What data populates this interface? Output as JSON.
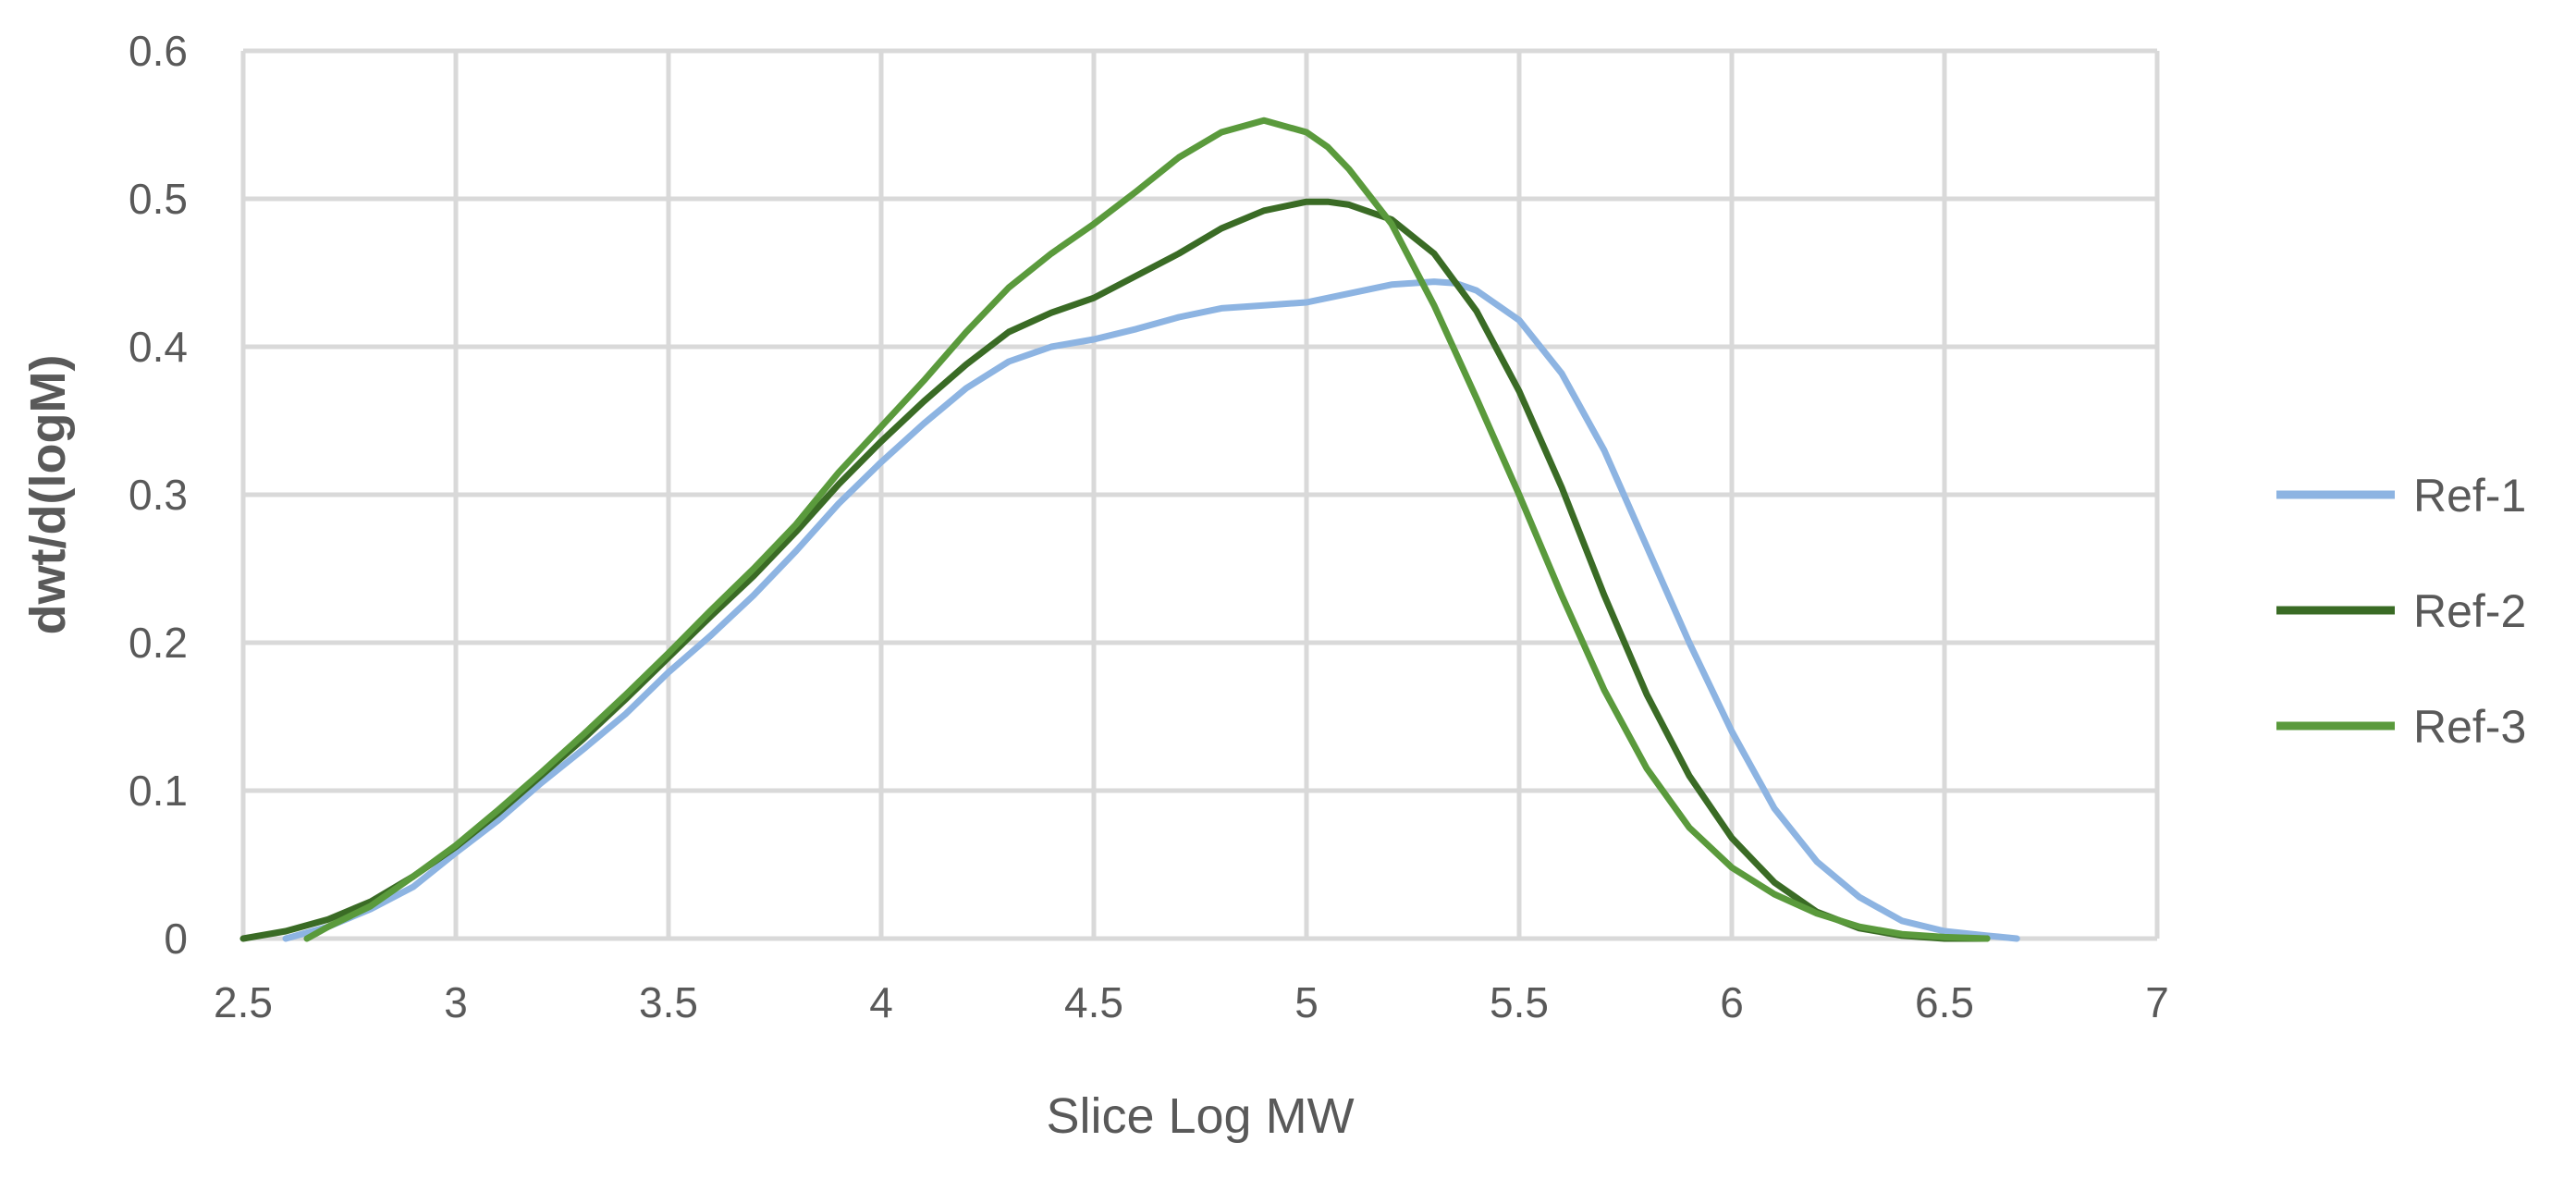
{
  "chart_data": {
    "type": "line",
    "title": "",
    "xlabel": "Slice Log MW",
    "ylabel": "dwt/d(logM)",
    "xlim": [
      2.5,
      7
    ],
    "ylim": [
      0,
      0.6
    ],
    "grid": true,
    "legend_position": "right",
    "x_ticks": [
      "2.5",
      "3",
      "3.5",
      "4",
      "4.5",
      "5",
      "5.5",
      "6",
      "6.5",
      "7"
    ],
    "y_ticks": [
      "0",
      "0.1",
      "0.2",
      "0.3",
      "0.4",
      "0.5",
      "0.6"
    ],
    "series": [
      {
        "name": "Ref-1",
        "color": "#8db4e2",
        "points": [
          [
            2.6,
            0
          ],
          [
            2.7,
            0.008
          ],
          [
            2.8,
            0.02
          ],
          [
            2.9,
            0.035
          ],
          [
            3.0,
            0.058
          ],
          [
            3.1,
            0.08
          ],
          [
            3.2,
            0.105
          ],
          [
            3.3,
            0.128
          ],
          [
            3.4,
            0.152
          ],
          [
            3.5,
            0.18
          ],
          [
            3.6,
            0.205
          ],
          [
            3.7,
            0.232
          ],
          [
            3.8,
            0.262
          ],
          [
            3.9,
            0.294
          ],
          [
            4.0,
            0.322
          ],
          [
            4.1,
            0.348
          ],
          [
            4.2,
            0.372
          ],
          [
            4.3,
            0.39
          ],
          [
            4.4,
            0.4
          ],
          [
            4.5,
            0.405
          ],
          [
            4.6,
            0.412
          ],
          [
            4.7,
            0.42
          ],
          [
            4.8,
            0.426
          ],
          [
            4.9,
            0.428
          ],
          [
            5.0,
            0.43
          ],
          [
            5.1,
            0.436
          ],
          [
            5.2,
            0.442
          ],
          [
            5.3,
            0.444
          ],
          [
            5.35,
            0.443
          ],
          [
            5.4,
            0.438
          ],
          [
            5.5,
            0.418
          ],
          [
            5.6,
            0.382
          ],
          [
            5.7,
            0.33
          ],
          [
            5.8,
            0.265
          ],
          [
            5.9,
            0.2
          ],
          [
            6.0,
            0.14
          ],
          [
            6.1,
            0.088
          ],
          [
            6.2,
            0.052
          ],
          [
            6.3,
            0.028
          ],
          [
            6.4,
            0.012
          ],
          [
            6.5,
            0.005
          ],
          [
            6.6,
            0.002
          ],
          [
            6.67,
            0
          ]
        ]
      },
      {
        "name": "Ref-2",
        "color": "#3a6b25",
        "points": [
          [
            2.5,
            0
          ],
          [
            2.6,
            0.005
          ],
          [
            2.7,
            0.013
          ],
          [
            2.8,
            0.025
          ],
          [
            2.9,
            0.042
          ],
          [
            3.0,
            0.062
          ],
          [
            3.1,
            0.085
          ],
          [
            3.2,
            0.11
          ],
          [
            3.3,
            0.135
          ],
          [
            3.4,
            0.162
          ],
          [
            3.5,
            0.19
          ],
          [
            3.6,
            0.218
          ],
          [
            3.7,
            0.245
          ],
          [
            3.8,
            0.275
          ],
          [
            3.9,
            0.307
          ],
          [
            4.0,
            0.336
          ],
          [
            4.1,
            0.363
          ],
          [
            4.2,
            0.388
          ],
          [
            4.3,
            0.41
          ],
          [
            4.4,
            0.423
          ],
          [
            4.5,
            0.433
          ],
          [
            4.6,
            0.448
          ],
          [
            4.7,
            0.463
          ],
          [
            4.8,
            0.48
          ],
          [
            4.9,
            0.492
          ],
          [
            5.0,
            0.498
          ],
          [
            5.05,
            0.498
          ],
          [
            5.1,
            0.496
          ],
          [
            5.2,
            0.486
          ],
          [
            5.3,
            0.463
          ],
          [
            5.4,
            0.424
          ],
          [
            5.5,
            0.37
          ],
          [
            5.6,
            0.305
          ],
          [
            5.7,
            0.232
          ],
          [
            5.8,
            0.165
          ],
          [
            5.9,
            0.11
          ],
          [
            6.0,
            0.068
          ],
          [
            6.1,
            0.038
          ],
          [
            6.2,
            0.018
          ],
          [
            6.3,
            0.007
          ],
          [
            6.4,
            0.002
          ],
          [
            6.5,
            0
          ],
          [
            6.6,
            0
          ]
        ]
      },
      {
        "name": "Ref-3",
        "color": "#5a9a3c",
        "points": [
          [
            2.65,
            0
          ],
          [
            2.7,
            0.008
          ],
          [
            2.8,
            0.022
          ],
          [
            2.9,
            0.042
          ],
          [
            3.0,
            0.063
          ],
          [
            3.1,
            0.087
          ],
          [
            3.2,
            0.112
          ],
          [
            3.3,
            0.138
          ],
          [
            3.4,
            0.165
          ],
          [
            3.5,
            0.193
          ],
          [
            3.6,
            0.222
          ],
          [
            3.7,
            0.25
          ],
          [
            3.8,
            0.28
          ],
          [
            3.9,
            0.315
          ],
          [
            4.0,
            0.346
          ],
          [
            4.1,
            0.377
          ],
          [
            4.2,
            0.41
          ],
          [
            4.3,
            0.44
          ],
          [
            4.4,
            0.463
          ],
          [
            4.5,
            0.483
          ],
          [
            4.6,
            0.505
          ],
          [
            4.7,
            0.528
          ],
          [
            4.8,
            0.545
          ],
          [
            4.9,
            0.553
          ],
          [
            5.0,
            0.545
          ],
          [
            5.05,
            0.535
          ],
          [
            5.1,
            0.52
          ],
          [
            5.2,
            0.483
          ],
          [
            5.3,
            0.428
          ],
          [
            5.4,
            0.365
          ],
          [
            5.5,
            0.3
          ],
          [
            5.6,
            0.232
          ],
          [
            5.7,
            0.168
          ],
          [
            5.8,
            0.115
          ],
          [
            5.9,
            0.075
          ],
          [
            6.0,
            0.048
          ],
          [
            6.1,
            0.03
          ],
          [
            6.2,
            0.017
          ],
          [
            6.3,
            0.008
          ],
          [
            6.4,
            0.003
          ],
          [
            6.5,
            0.001
          ],
          [
            6.6,
            0
          ]
        ]
      }
    ]
  }
}
